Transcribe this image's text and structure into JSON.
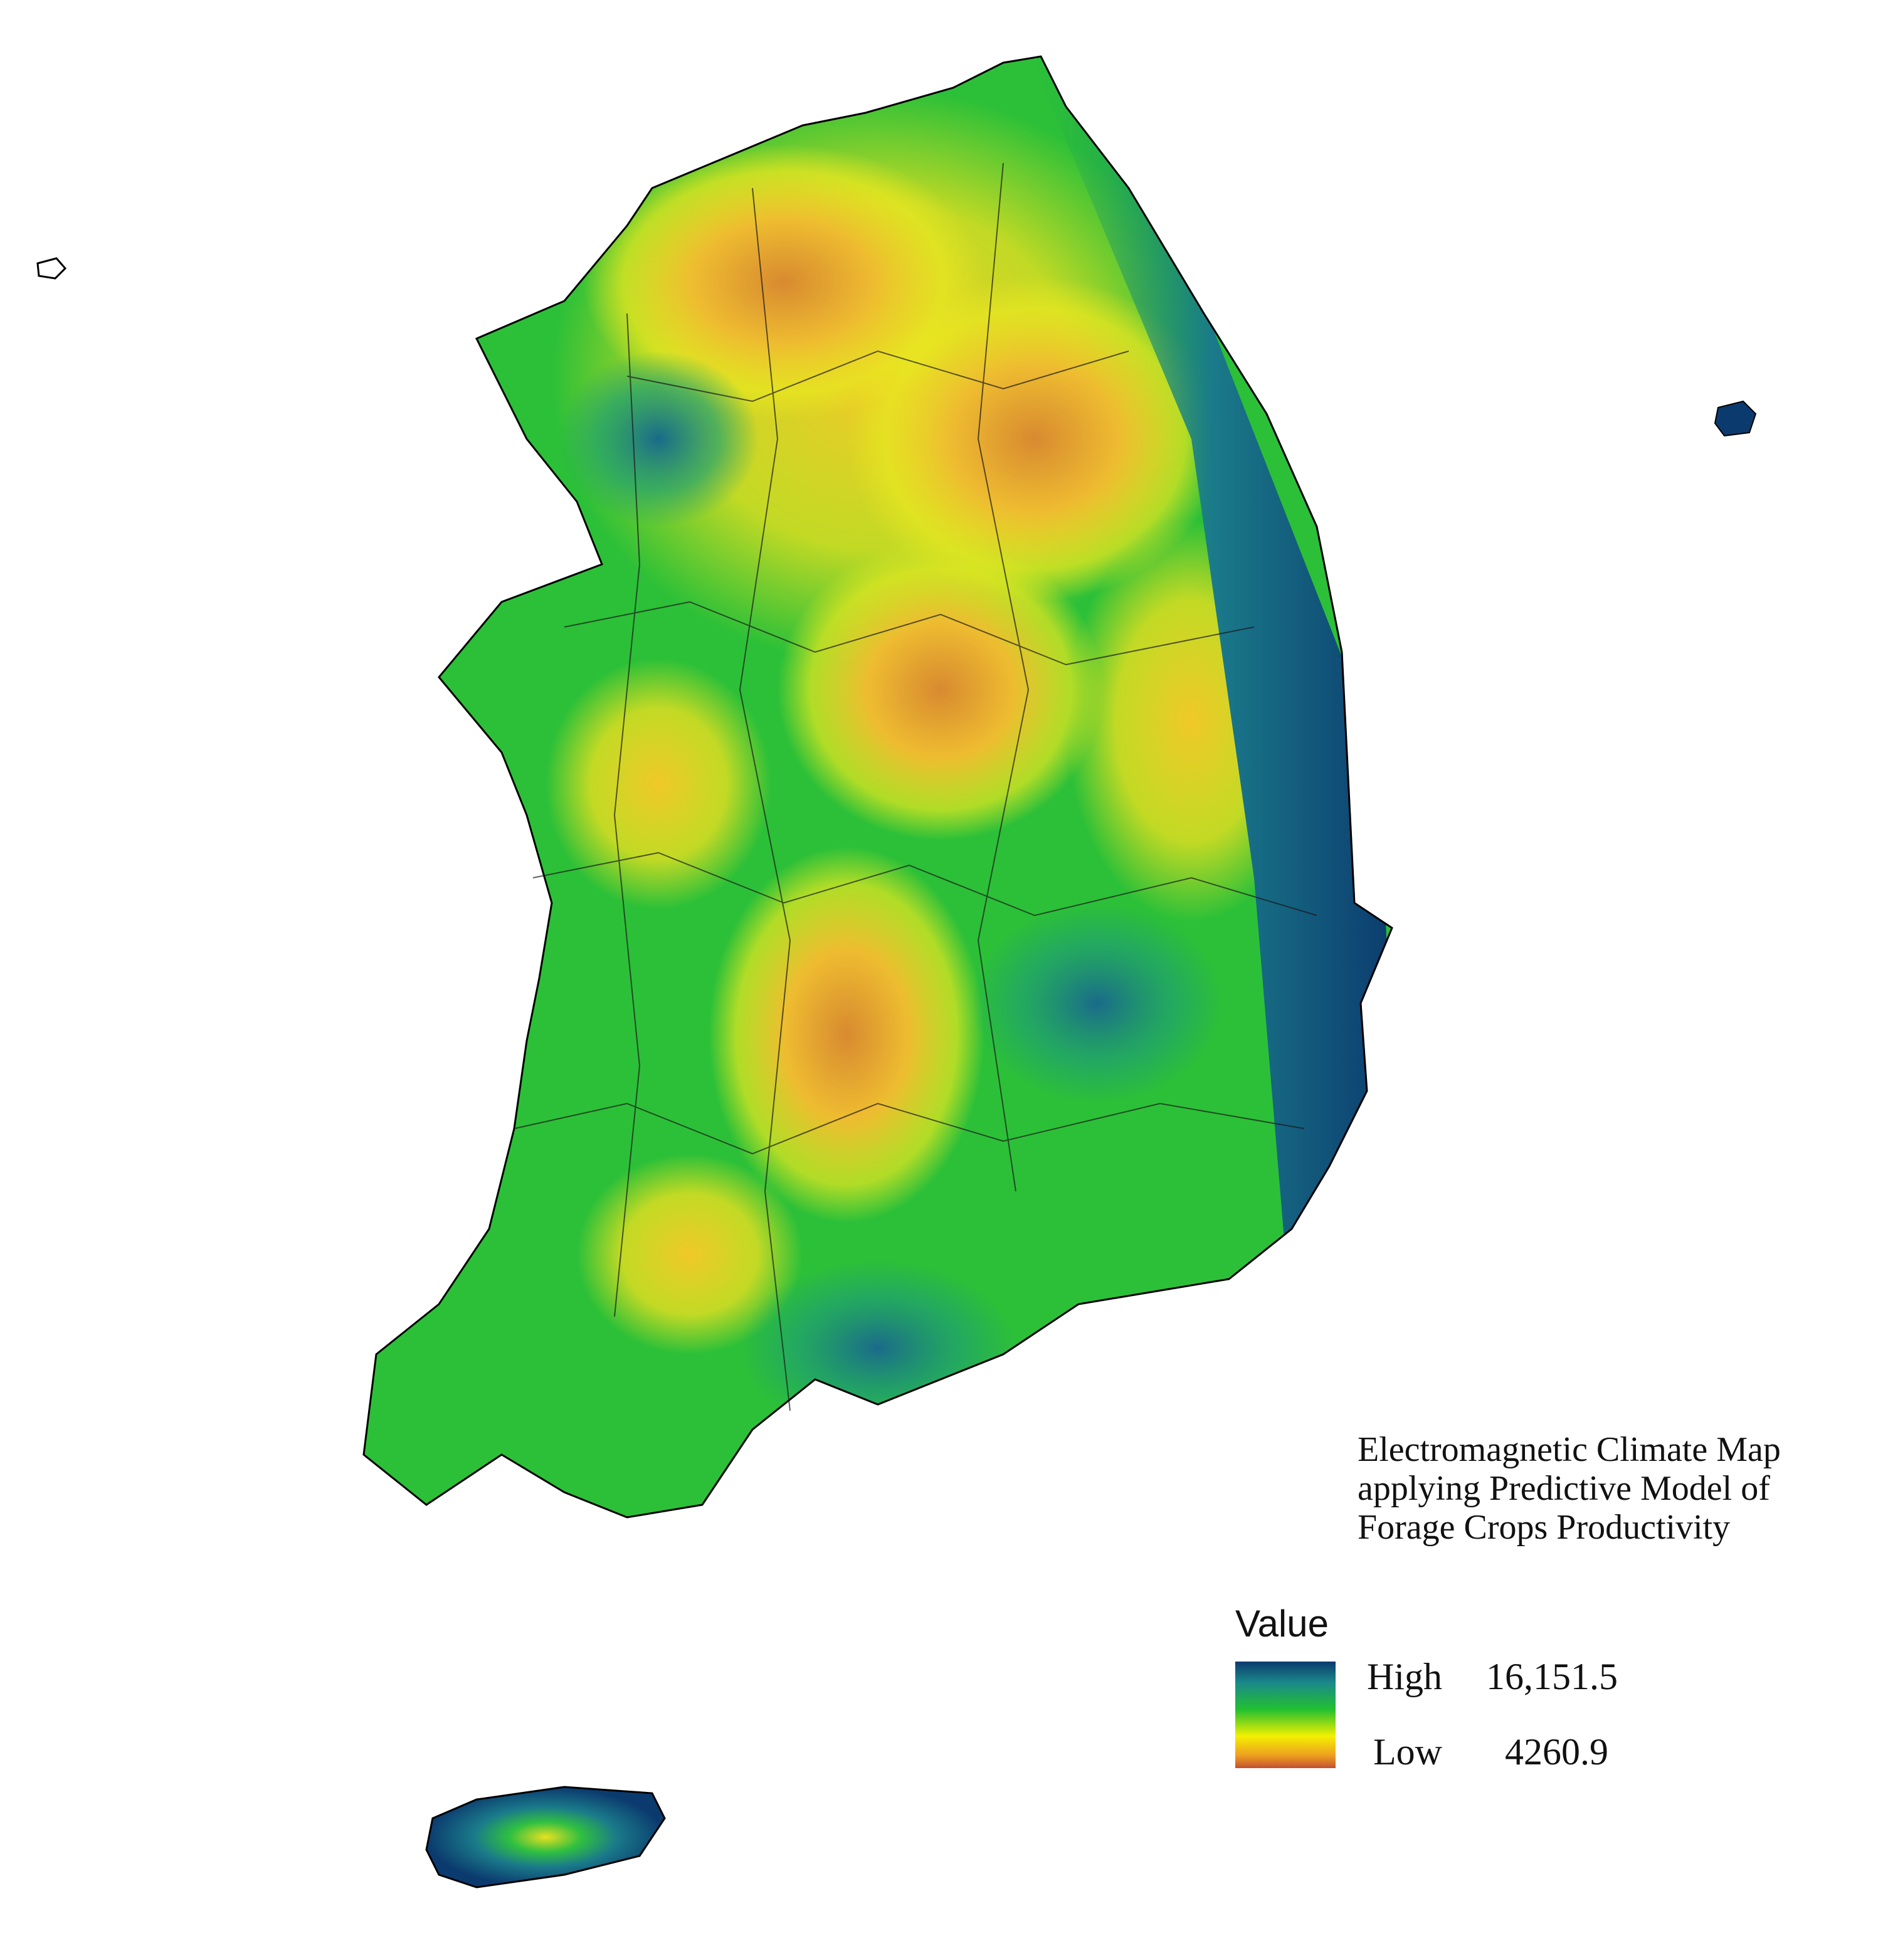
{
  "title": [
    "Electromagnetic Climate Map",
    "applying Predictive Model of",
    "Forage Crops Productivity"
  ],
  "legend": {
    "title": "Value",
    "high": {
      "label": "High",
      "value": {
        "value": 16151.5,
        "label": "16,151.5"
      }
    },
    "low": {
      "label": "Low",
      "value": 4260.9
    }
  }
}
